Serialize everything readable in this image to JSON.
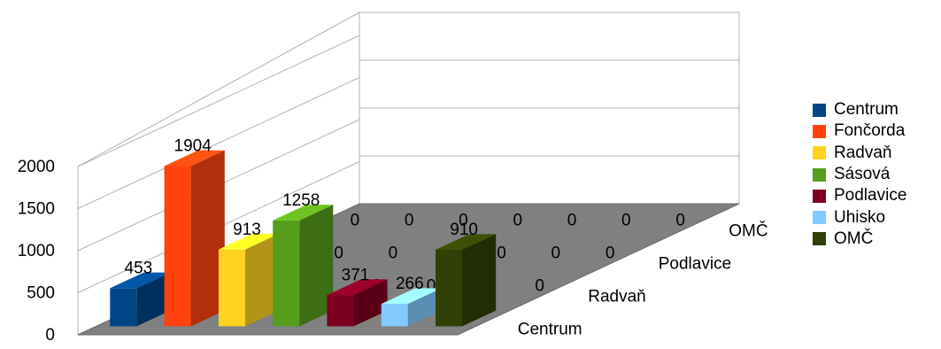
{
  "chart_data": {
    "type": "bar",
    "subtype": "3d-clustered",
    "title": "",
    "categories": [
      "Centrum",
      "Radvaň",
      "Podlavice",
      "OMČ"
    ],
    "series": [
      {
        "name": "Centrum",
        "color": "#004586",
        "values": [
          453,
          0,
          0,
          0
        ]
      },
      {
        "name": "Fončorda",
        "color": "#ff420e",
        "values": [
          1904,
          0,
          0,
          0
        ]
      },
      {
        "name": "Radvaň",
        "color": "#ffd320",
        "values": [
          913,
          0,
          0,
          0
        ]
      },
      {
        "name": "Sásová",
        "color": "#579d1c",
        "values": [
          1258,
          0,
          0,
          0
        ]
      },
      {
        "name": "Podlavice",
        "color": "#7e0021",
        "values": [
          371,
          0,
          0,
          0
        ]
      },
      {
        "name": "Uhisko",
        "color": "#83caff",
        "values": [
          266,
          0,
          0,
          0
        ]
      },
      {
        "name": "OMČ",
        "color": "#314004",
        "values": [
          910,
          0,
          0,
          0
        ]
      }
    ],
    "y_ticks": [
      0,
      500,
      1000,
      1500,
      2000
    ],
    "ylim": [
      0,
      2000
    ],
    "floor_color": "#808080",
    "gridlines": true,
    "legend_position": "right"
  }
}
